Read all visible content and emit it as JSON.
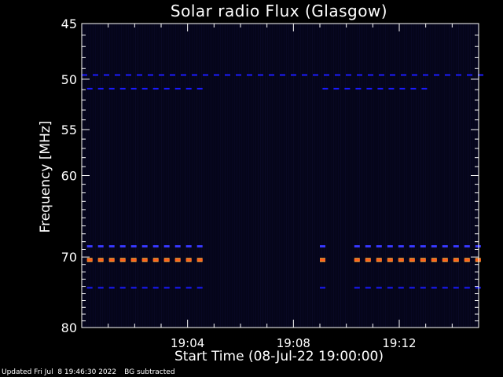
{
  "chart_data": {
    "type": "heatmap",
    "title": "Solar radio Flux (Glasgow)",
    "xlabel": "Start Time (08-Jul-22 19:00:00)",
    "ylabel": "Frequency [MHz]",
    "x_ticks": [
      "19:04",
      "19:08",
      "19:12"
    ],
    "x_tick_minutes": [
      4,
      8,
      12
    ],
    "xlim_minutes": [
      0,
      15
    ],
    "y_ticks": [
      45,
      50,
      55,
      60,
      70,
      80
    ],
    "ylim": [
      45,
      80
    ],
    "y_scale": "log",
    "colors": {
      "background": "#000000",
      "plot_bg": "#05051a",
      "low": "#1a1aff",
      "mid": "#3838ff",
      "high": "#ff9a33",
      "high_core": "#ff5a1a"
    },
    "bands": [
      {
        "freq": 49.6,
        "intensity": "low",
        "segments": [
          [
            0,
            15
          ]
        ]
      },
      {
        "freq": 50.9,
        "intensity": "low",
        "segments": [
          [
            0.2,
            4.7
          ],
          [
            9.1,
            13.1
          ]
        ]
      },
      {
        "freq": 68.6,
        "intensity": "mid",
        "segments": [
          [
            0.2,
            4.7
          ],
          [
            9.0,
            9.2
          ],
          [
            10.3,
            15
          ]
        ]
      },
      {
        "freq": 70.4,
        "intensity": "high",
        "segments": [
          [
            0.2,
            4.7
          ],
          [
            9.0,
            9.2
          ],
          [
            10.3,
            15
          ]
        ]
      },
      {
        "freq": 74.2,
        "intensity": "low",
        "segments": [
          [
            0.2,
            4.7
          ],
          [
            9.0,
            9.2
          ],
          [
            10.3,
            15
          ]
        ]
      }
    ]
  },
  "footer": {
    "updated": "Updated Fri Jul  8 19:46:30 2022",
    "bg_note": "BG subtracted"
  }
}
